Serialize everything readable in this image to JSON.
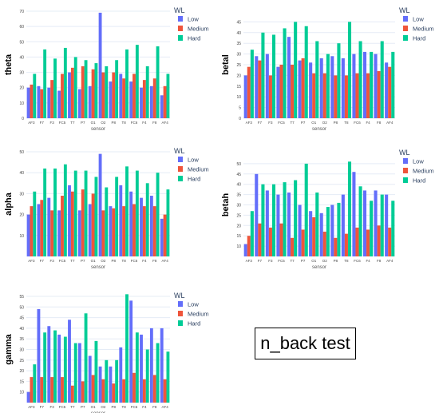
{
  "annotation": {
    "text": "n_back test"
  },
  "colors": {
    "Low": "#636efa",
    "Medium": "#ef553b",
    "Hard": "#00cc96",
    "grid": "#e5ecf6"
  },
  "chart_data": [
    {
      "type": "bar",
      "ylabel": "theta",
      "xlabel": "sensor",
      "legend_title": "WL",
      "legend_position": "top-right",
      "grid": true,
      "ylim": [
        0,
        70
      ],
      "yticks": [
        0,
        10,
        20,
        30,
        40,
        50,
        60,
        70
      ],
      "categories": [
        "AF3",
        "F7",
        "F3",
        "FC5",
        "T7",
        "P7",
        "O1",
        "O2",
        "P8",
        "T8",
        "FC6",
        "F4",
        "F8",
        "AF4"
      ],
      "series": [
        {
          "name": "Low",
          "values": [
            20,
            21,
            20,
            18,
            30,
            19,
            21,
            69,
            24,
            29,
            24,
            20,
            21,
            15
          ]
        },
        {
          "name": "Medium",
          "values": [
            22,
            19,
            25,
            29,
            33,
            34,
            32,
            30,
            30,
            26,
            29,
            25,
            26,
            21
          ]
        },
        {
          "name": "Hard",
          "values": [
            29,
            45,
            39,
            46,
            40,
            38,
            36,
            34,
            38,
            45,
            48,
            34,
            47,
            29
          ]
        }
      ]
    },
    {
      "type": "bar",
      "ylabel": "betal",
      "xlabel": "sensor",
      "legend_title": "WL",
      "legend_position": "top-right",
      "grid": true,
      "ylim": [
        0,
        50
      ],
      "yticks": [
        0,
        5,
        10,
        15,
        20,
        25,
        30,
        35,
        40,
        45
      ],
      "categories": [
        "AF3",
        "F7",
        "F3",
        "FC5",
        "T7",
        "P7",
        "O1",
        "O2",
        "P8",
        "T8",
        "FC6",
        "F4",
        "F8",
        "AF4"
      ],
      "series": [
        {
          "name": "Low",
          "values": [
            20,
            29,
            30,
            24,
            38,
            27,
            26,
            28,
            29,
            28,
            30,
            31,
            30,
            26
          ]
        },
        {
          "name": "Medium",
          "values": [
            24,
            27,
            20,
            25,
            25,
            28,
            21,
            21,
            20,
            20,
            21,
            21,
            22,
            24
          ]
        },
        {
          "name": "Hard",
          "values": [
            32,
            40,
            39,
            42,
            45,
            43,
            36,
            30,
            35,
            45,
            36,
            31,
            36,
            31
          ]
        }
      ]
    },
    {
      "type": "bar",
      "ylabel": "alpha",
      "xlabel": "sensor",
      "legend_title": "WL",
      "legend_position": "top-right",
      "grid": true,
      "ylim": [
        0,
        50
      ],
      "yticks": [
        10,
        20,
        30,
        40,
        50
      ],
      "categories": [
        "AF3",
        "F7",
        "F3",
        "FC5",
        "T7",
        "P7",
        "O1",
        "O2",
        "P8",
        "T8",
        "FC6",
        "F4",
        "F8",
        "AF4"
      ],
      "series": [
        {
          "name": "Low",
          "values": [
            20,
            25,
            28,
            22,
            34,
            22,
            25,
            49,
            24,
            34,
            31,
            28,
            29,
            18
          ]
        },
        {
          "name": "Medium",
          "values": [
            24,
            27,
            22,
            29,
            31,
            32,
            30,
            22,
            23,
            24,
            25,
            24,
            24,
            20
          ]
        },
        {
          "name": "Hard",
          "values": [
            31,
            42,
            42,
            44,
            41,
            41,
            38,
            33,
            38,
            43,
            41,
            35,
            40,
            32
          ]
        }
      ]
    },
    {
      "type": "bar",
      "ylabel": "betah",
      "xlabel": "sensor",
      "legend_title": "WL",
      "legend_position": "top-right",
      "grid": true,
      "ylim": [
        5,
        55
      ],
      "yticks": [
        10,
        15,
        20,
        25,
        30,
        35,
        40,
        45,
        50
      ],
      "categories": [
        "AF3",
        "F7",
        "F3",
        "FC5",
        "T7",
        "P7",
        "O1",
        "O2",
        "P8",
        "T8",
        "FC6",
        "F4",
        "F8",
        "AF4"
      ],
      "series": [
        {
          "name": "Low",
          "values": [
            11,
            45,
            37,
            35,
            36,
            30,
            27,
            26,
            30,
            35,
            46,
            37,
            37,
            35
          ]
        },
        {
          "name": "Medium",
          "values": [
            15,
            21,
            19,
            21,
            14,
            18,
            24,
            17,
            14,
            16,
            19,
            18,
            20,
            19
          ]
        },
        {
          "name": "Hard",
          "values": [
            27,
            40,
            40,
            41,
            42,
            50,
            36,
            29,
            31,
            51,
            39,
            32,
            35,
            32
          ]
        }
      ]
    },
    {
      "type": "bar",
      "ylabel": "gamma",
      "xlabel": "sensor",
      "legend_title": "WL",
      "legend_position": "top-right",
      "grid": true,
      "ylim": [
        5,
        55
      ],
      "yticks": [
        10,
        15,
        20,
        25,
        30,
        35,
        40,
        45,
        50,
        55
      ],
      "categories": [
        "AF3",
        "F7",
        "F3",
        "FC5",
        "T7",
        "P7",
        "O1",
        "O2",
        "P8",
        "T8",
        "FC6",
        "F4",
        "F8",
        "AF4"
      ],
      "series": [
        {
          "name": "Low",
          "values": [
            10,
            49,
            41,
            37,
            44,
            33,
            27,
            22,
            22,
            31,
            53,
            37,
            40,
            40
          ]
        },
        {
          "name": "Medium",
          "values": [
            17,
            17,
            17,
            17,
            13,
            15,
            18,
            16,
            14,
            16,
            19,
            16,
            18,
            16
          ]
        },
        {
          "name": "Hard",
          "values": [
            23,
            38,
            39,
            36,
            33,
            47,
            34,
            25,
            25,
            56,
            38,
            30,
            33,
            29
          ]
        }
      ]
    }
  ]
}
